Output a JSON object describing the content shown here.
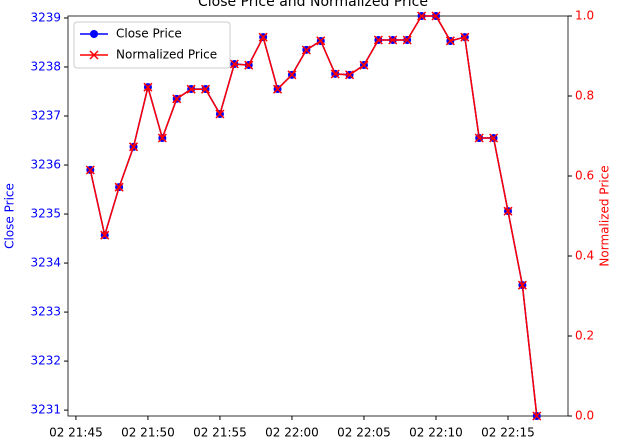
{
  "chart_data": {
    "type": "line",
    "title": "Close Price and Normalized Price",
    "y_label": "Close Price",
    "y2_label": "Normalized Price",
    "x": [
      "02 21:46",
      "02 21:47",
      "02 21:48",
      "02 21:49",
      "02 21:50",
      "02 21:51",
      "02 21:52",
      "02 21:53",
      "02 21:54",
      "02 21:55",
      "02 21:56",
      "02 21:57",
      "02 21:58",
      "02 21:59",
      "02 22:00",
      "02 22:01",
      "02 22:02",
      "02 22:03",
      "02 22:04",
      "02 22:05",
      "02 22:06",
      "02 22:07",
      "02 22:08",
      "02 22:09",
      "02 22:10",
      "02 22:11",
      "02 22:12",
      "02 22:13",
      "02 22:14",
      "02 22:15",
      "02 22:16",
      "02 22:17"
    ],
    "series": [
      {
        "name": "Close Price",
        "color": "#0000ff",
        "marker": "o",
        "values": [
          3235.9,
          3234.57,
          3235.55,
          3236.37,
          3237.59,
          3236.55,
          3237.35,
          3237.55,
          3237.55,
          3237.04,
          3238.06,
          3238.04,
          3238.61,
          3237.55,
          3237.84,
          3238.35,
          3238.53,
          3237.86,
          3237.84,
          3238.04,
          3238.55,
          3238.55,
          3238.55,
          3239.04,
          3239.04,
          3238.53,
          3238.61,
          3236.55,
          3236.55,
          3235.06,
          3233.55,
          3230.88
        ]
      },
      {
        "name": "Normalized Price",
        "color": "#ff0000",
        "marker": "x",
        "axis": "y2",
        "values": [
          0.615,
          0.452,
          0.572,
          0.673,
          0.822,
          0.695,
          0.793,
          0.817,
          0.817,
          0.755,
          0.88,
          0.877,
          0.947,
          0.817,
          0.853,
          0.915,
          0.938,
          0.855,
          0.853,
          0.877,
          0.94,
          0.94,
          0.94,
          1.0,
          1.0,
          0.938,
          0.947,
          0.695,
          0.695,
          0.512,
          0.327,
          0
        ]
      }
    ],
    "xlim": [
      "02 21:44:27",
      "02 22:19:10"
    ],
    "xticks": [
      "02 21:45",
      "02 21:50",
      "02 21:55",
      "02 22:00",
      "02 22:05",
      "02 22:10",
      "02 22:15"
    ],
    "ylim": [
      3230.88,
      3239.04
    ],
    "yticks": [
      3231,
      3232,
      3233,
      3234,
      3235,
      3236,
      3237,
      3238,
      3239
    ],
    "y2lim": [
      0,
      1
    ],
    "y2ticks": [
      {
        "value": 0,
        "label": "0.0"
      },
      {
        "value": 0.2,
        "label": "0.2"
      },
      {
        "value": 0.4,
        "label": "0.4"
      },
      {
        "value": 0.6,
        "label": "0.6"
      },
      {
        "value": 0.8,
        "label": "0.8"
      },
      {
        "value": 1,
        "label": "1.0"
      }
    ],
    "legend": "upper left"
  }
}
